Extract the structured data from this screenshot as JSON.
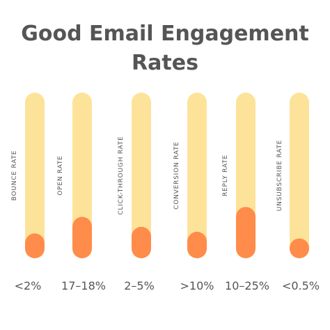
{
  "title_lines": [
    "Good Email Engagement",
    "Rates"
  ],
  "colors": {
    "track": "#fde39a",
    "fill": "#ff8c4a",
    "text": "#555555"
  },
  "chart_data": {
    "type": "bar",
    "title": "Good Email Engagement Rates",
    "categories": [
      "BOUNCE RATE",
      "OPEN RATE",
      "CLICK-THROUGH RATE",
      "CONVERSION RATE",
      "REPLY RATE",
      "UNSUBSCRIBE RATE"
    ],
    "value_labels": [
      "<2%",
      "17–18%",
      "2–5%",
      ">10%",
      "10–25%",
      "<0.5%"
    ],
    "fill_fraction": [
      0.15,
      0.25,
      0.19,
      0.16,
      0.31,
      0.12
    ],
    "ylim": [
      0,
      1
    ],
    "grid": false
  }
}
